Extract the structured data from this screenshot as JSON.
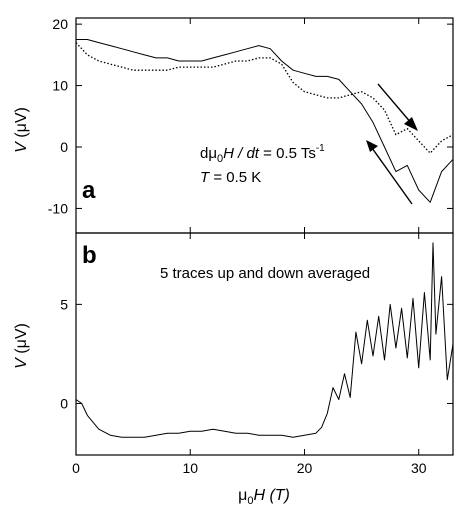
{
  "chart_data": [
    {
      "panel": "a",
      "type": "line",
      "xlabel_main": "μ",
      "xlabel_sub": "0",
      "xlabel_rest": "H (T)",
      "ylabel_main": "V",
      "ylabel_rest": " (μV)",
      "xlim": [
        0,
        33
      ],
      "ylim": [
        -14,
        21
      ],
      "xticks": [
        0,
        10,
        20,
        30
      ],
      "yticks": [
        -10,
        0,
        10,
        20
      ],
      "yticklabels": [
        "-10",
        "0",
        "10",
        "20"
      ],
      "annotations": {
        "rate_prefix": "dμ",
        "rate_sub": "0",
        "rate_mid": "H / dt",
        "rate_value": " = 0.5 Ts",
        "rate_sup": "-1",
        "temp_var": "T",
        "temp_value": " = 0.5 K"
      },
      "series": [
        {
          "style": "solid",
          "x": [
            0,
            1,
            2,
            3,
            4,
            5,
            6,
            7,
            8,
            9,
            10,
            11,
            12,
            13,
            14,
            15,
            16,
            17,
            18,
            19,
            20,
            21,
            22,
            23,
            24,
            25,
            26,
            27,
            28,
            29,
            30,
            31,
            32,
            33
          ],
          "values": [
            17.5,
            17.5,
            17,
            16.5,
            16,
            15.5,
            15,
            14.5,
            14.5,
            14,
            14,
            14,
            14.5,
            15,
            15.5,
            16,
            16.5,
            16,
            14,
            12.5,
            12,
            11.5,
            11.5,
            11,
            9,
            7,
            4,
            0,
            -4,
            -3,
            -7,
            -9,
            -4,
            -2
          ]
        },
        {
          "style": "dotted",
          "x": [
            0,
            1,
            2,
            3,
            4,
            5,
            6,
            7,
            8,
            9,
            10,
            11,
            12,
            13,
            14,
            15,
            16,
            17,
            18,
            19,
            20,
            21,
            22,
            23,
            24,
            25,
            26,
            27,
            28,
            29,
            30,
            31,
            32,
            33
          ],
          "values": [
            17,
            15,
            14,
            13.5,
            13,
            12.5,
            12.5,
            12.5,
            12.5,
            13,
            13,
            13,
            13,
            13.5,
            14,
            14,
            14.5,
            14.5,
            13.5,
            10.5,
            9,
            8.5,
            8,
            8,
            8.5,
            9,
            8,
            6,
            2,
            3,
            1,
            -1,
            1,
            2
          ]
        }
      ]
    },
    {
      "panel": "b",
      "type": "line",
      "annotation": "5 traces up and down averaged",
      "xlabel_main": "μ",
      "xlabel_sub": "0",
      "xlabel_rest": "H (T)",
      "ylabel_main": "V",
      "ylabel_rest": " (μV)",
      "xlim": [
        0,
        33
      ],
      "ylim": [
        -2.6,
        8.6
      ],
      "xticks": [
        0,
        10,
        20,
        30
      ],
      "xticklabels": [
        "0",
        "10",
        "20",
        "30"
      ],
      "yticks": [
        0,
        5
      ],
      "yticklabels": [
        "0",
        "5"
      ],
      "series": [
        {
          "style": "solid",
          "x": [
            0,
            0.5,
            1,
            2,
            3,
            4,
            5,
            6,
            7,
            8,
            9,
            10,
            11,
            12,
            13,
            14,
            15,
            16,
            17,
            18,
            19,
            20,
            21,
            21.5,
            22,
            22.5,
            23,
            23.5,
            24,
            24.5,
            25,
            25.5,
            26,
            26.5,
            27,
            27.5,
            28,
            28.5,
            29,
            29.5,
            30,
            30.5,
            31,
            31.25,
            31.5,
            32,
            32.5,
            33
          ],
          "values": [
            0.2,
            0.0,
            -0.6,
            -1.3,
            -1.6,
            -1.7,
            -1.7,
            -1.7,
            -1.6,
            -1.5,
            -1.5,
            -1.4,
            -1.4,
            -1.3,
            -1.4,
            -1.5,
            -1.5,
            -1.6,
            -1.6,
            -1.6,
            -1.7,
            -1.6,
            -1.5,
            -1.2,
            -0.5,
            0.8,
            0.2,
            1.5,
            0.3,
            3.6,
            2.0,
            4.2,
            2.4,
            4.4,
            2.2,
            5.0,
            2.8,
            4.8,
            2.3,
            5.3,
            1.8,
            5.6,
            2.2,
            8.1,
            3.5,
            6.4,
            1.2,
            3.0
          ]
        }
      ]
    }
  ]
}
